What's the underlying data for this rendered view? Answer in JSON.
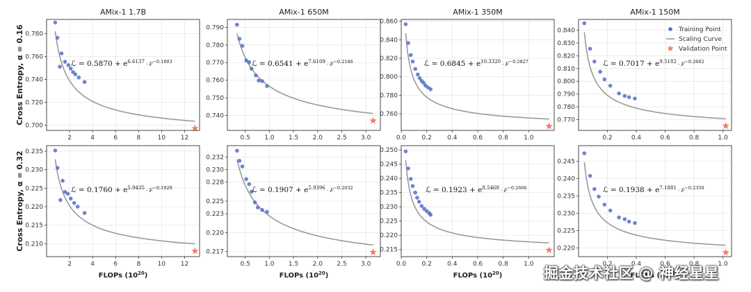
{
  "figure": {
    "row_labels": [
      "Cross Entropy, α = 0.16",
      "Cross Entropy, α = 0.32"
    ],
    "xlabel": "FLOPs (10",
    "xlabel_exp": "20",
    "xlabel_close": ")",
    "legend": {
      "training": "Training Point",
      "curve": "Scaling Curve",
      "validation": "Validation Point"
    },
    "colors": {
      "point": "#5470c6",
      "curve": "#999999",
      "star": "#f47b67"
    }
  },
  "watermark": "掘金技术社区 @ 神经星星",
  "chart_data": [
    {
      "type": "scatter",
      "title": "AMix-1 1.7B",
      "row": 0,
      "col": 0,
      "xlim": [
        0,
        13.3
      ],
      "ylim": [
        0.6955,
        0.7925
      ],
      "xticks": [
        2,
        4,
        6,
        8,
        10,
        12
      ],
      "yticks": [
        0.7,
        0.72,
        0.74,
        0.76,
        0.78
      ],
      "ytick_labels": [
        "0.700",
        "0.720",
        "0.740",
        "0.760",
        "0.780"
      ],
      "xtick_labels": [
        "2",
        "4",
        "6",
        "8",
        "10",
        "12"
      ],
      "formula": {
        "a": "0.5870",
        "b": "6.6137",
        "c": "0.1803"
      },
      "curve": {
        "a": 0.587,
        "b": 6.6137,
        "c": 0.1803
      },
      "training_points": [
        [
          0.75,
          0.7898
        ],
        [
          0.95,
          0.7765
        ],
        [
          1.3,
          0.7628
        ],
        [
          1.15,
          0.7512
        ],
        [
          1.6,
          0.7555
        ],
        [
          1.9,
          0.7525
        ],
        [
          2.1,
          0.7495
        ],
        [
          2.3,
          0.7465
        ],
        [
          2.5,
          0.7445
        ],
        [
          2.8,
          0.7418
        ],
        [
          3.3,
          0.7378
        ]
      ],
      "validation_point": [
        12.9,
        0.6972
      ],
      "curve_range": [
        0.75,
        12.9
      ]
    },
    {
      "type": "scatter",
      "title": "AMix-1 650M",
      "row": 0,
      "col": 1,
      "xlim": [
        0.13,
        3.3
      ],
      "ylim": [
        0.7315,
        0.7945
      ],
      "xticks": [
        0.5,
        1.0,
        1.5,
        2.0,
        2.5,
        3.0
      ],
      "yticks": [
        0.74,
        0.75,
        0.76,
        0.77,
        0.78,
        0.79
      ],
      "ytick_labels": [
        "0.740",
        "0.750",
        "0.760",
        "0.770",
        "0.780",
        "0.790"
      ],
      "xtick_labels": [
        "0.5",
        "1.0",
        "1.5",
        "2.0",
        "2.5",
        "3.0"
      ],
      "formula": {
        "a": "0.6541",
        "b": "7.6109",
        "c": "0.2146"
      },
      "curve": {
        "a": 0.6541,
        "b": 7.6109,
        "c": 0.2146
      },
      "training_points": [
        [
          0.33,
          0.7915
        ],
        [
          0.38,
          0.7835
        ],
        [
          0.44,
          0.7795
        ],
        [
          0.52,
          0.7712
        ],
        [
          0.58,
          0.7702
        ],
        [
          0.63,
          0.7665
        ],
        [
          0.72,
          0.7627
        ],
        [
          0.78,
          0.7598
        ],
        [
          0.85,
          0.7595
        ],
        [
          0.95,
          0.7567
        ]
      ],
      "validation_point": [
        3.15,
        0.737
      ],
      "curve_range": [
        0.33,
        3.15
      ]
    },
    {
      "type": "scatter",
      "title": "AMix-1 350M",
      "row": 0,
      "col": 2,
      "xlim": [
        0,
        1.2
      ],
      "ylim": [
        0.742,
        0.862
      ],
      "xticks": [
        0.0,
        0.2,
        0.4,
        0.6,
        0.8,
        1.0
      ],
      "yticks": [
        0.76,
        0.78,
        0.8,
        0.82,
        0.84,
        0.86
      ],
      "ytick_labels": [
        "0.760",
        "0.780",
        "0.800",
        "0.820",
        "0.840",
        "0.860"
      ],
      "xtick_labels": [
        "0.0",
        "0.2",
        "0.4",
        "0.6",
        "0.8",
        "1.0"
      ],
      "formula": {
        "a": "0.6845",
        "b": "10.3320",
        "c": "0.2827"
      },
      "curve": {
        "a": 0.6845,
        "b": 10.332,
        "c": 0.2827
      },
      "training_points": [
        [
          0.035,
          0.8568
        ],
        [
          0.055,
          0.8365
        ],
        [
          0.075,
          0.8235
        ],
        [
          0.09,
          0.8165
        ],
        [
          0.11,
          0.8085
        ],
        [
          0.13,
          0.8025
        ],
        [
          0.145,
          0.7985
        ],
        [
          0.16,
          0.7955
        ],
        [
          0.175,
          0.7935
        ],
        [
          0.19,
          0.7905
        ],
        [
          0.21,
          0.7885
        ],
        [
          0.23,
          0.7865
        ]
      ],
      "validation_point": [
        1.16,
        0.7465
      ],
      "curve_range": [
        0.035,
        1.16
      ]
    },
    {
      "type": "scatter",
      "title": "AMix-1 150M",
      "row": 0,
      "col": 3,
      "xlim": [
        0,
        1.06
      ],
      "ylim": [
        0.7615,
        0.8485
      ],
      "xticks": [
        0.2,
        0.4,
        0.6,
        0.8,
        1.0
      ],
      "yticks": [
        0.77,
        0.78,
        0.79,
        0.8,
        0.81,
        0.82,
        0.83,
        0.84
      ],
      "ytick_labels": [
        "0.770",
        "0.780",
        "0.790",
        "0.800",
        "0.810",
        "0.820",
        "0.830",
        "0.840"
      ],
      "xtick_labels": [
        "0.2",
        "0.4",
        "0.6",
        "0.8",
        "1.0"
      ],
      "formula": {
        "a": "0.7017",
        "b": "9.5182",
        "c": "0.2662"
      },
      "curve": {
        "a": 0.7017,
        "b": 9.5182,
        "c": 0.2662
      },
      "training_points": [
        [
          0.04,
          0.8455
        ],
        [
          0.08,
          0.8255
        ],
        [
          0.11,
          0.8155
        ],
        [
          0.15,
          0.8075
        ],
        [
          0.18,
          0.8015
        ],
        [
          0.22,
          0.7965
        ],
        [
          0.28,
          0.7905
        ],
        [
          0.32,
          0.7885
        ],
        [
          0.35,
          0.7875
        ],
        [
          0.39,
          0.7865
        ]
      ],
      "validation_point": [
        1.02,
        0.765
      ],
      "curve_range": [
        0.04,
        1.02
      ]
    },
    {
      "type": "scatter",
      "title": "",
      "row": 1,
      "col": 0,
      "xlim": [
        0,
        13.3
      ],
      "ylim": [
        0.2065,
        0.2365
      ],
      "xticks": [
        2,
        4,
        6,
        8,
        10,
        12
      ],
      "yticks": [
        0.21,
        0.215,
        0.22,
        0.225,
        0.23,
        0.235
      ],
      "ytick_labels": [
        "0.210",
        "0.215",
        "0.220",
        "0.225",
        "0.230",
        "0.235"
      ],
      "xtick_labels": [
        "2",
        "4",
        "6",
        "8",
        "10",
        "12"
      ],
      "formula": {
        "a": "0.1760",
        "b": "5.9435",
        "c": "0.1929"
      },
      "curve": {
        "a": 0.176,
        "b": 5.9435,
        "c": 0.1929
      },
      "training_points": [
        [
          0.75,
          0.2352
        ],
        [
          0.95,
          0.2305
        ],
        [
          1.4,
          0.227
        ],
        [
          1.2,
          0.2218
        ],
        [
          1.6,
          0.224
        ],
        [
          1.85,
          0.2235
        ],
        [
          2.1,
          0.2222
        ],
        [
          2.4,
          0.221
        ],
        [
          2.7,
          0.22
        ],
        [
          3.3,
          0.2183
        ]
      ],
      "validation_point": [
        12.9,
        0.208
      ],
      "curve_range": [
        0.75,
        12.9
      ]
    },
    {
      "type": "scatter",
      "title": "",
      "row": 1,
      "col": 1,
      "xlim": [
        0.13,
        3.3
      ],
      "ylim": [
        0.2162,
        0.2338
      ],
      "xticks": [
        0.5,
        1.0,
        1.5,
        2.0,
        2.5,
        3.0
      ],
      "yticks": [
        0.217,
        0.22,
        0.223,
        0.225,
        0.228,
        0.23,
        0.232
      ],
      "ytick_labels": [
        "0.217",
        "0.220",
        "0.223",
        "0.225",
        "0.228",
        "0.230",
        "0.232"
      ],
      "xtick_labels": [
        "0.5",
        "1.0",
        "1.5",
        "2.0",
        "2.5",
        "3.0"
      ],
      "formula": {
        "a": "0.1907",
        "b": "5.9396",
        "c": "0.2032"
      },
      "curve": {
        "a": 0.1907,
        "b": 5.9396,
        "c": 0.2032
      },
      "training_points": [
        [
          0.33,
          0.233
        ],
        [
          0.38,
          0.2314
        ],
        [
          0.44,
          0.2305
        ],
        [
          0.52,
          0.2285
        ],
        [
          0.58,
          0.2277
        ],
        [
          0.63,
          0.2265
        ],
        [
          0.7,
          0.2248
        ],
        [
          0.76,
          0.224
        ],
        [
          0.85,
          0.2236
        ],
        [
          0.95,
          0.2233
        ]
      ],
      "validation_point": [
        3.15,
        0.2169
      ],
      "curve_range": [
        0.33,
        3.15
      ]
    },
    {
      "type": "scatter",
      "title": "",
      "row": 1,
      "col": 2,
      "xlim": [
        0,
        1.2
      ],
      "ylim": [
        0.2125,
        0.2515
      ],
      "xticks": [
        0.0,
        0.2,
        0.4,
        0.6,
        0.8,
        1.0
      ],
      "yticks": [
        0.215,
        0.22,
        0.225,
        0.23,
        0.235,
        0.24,
        0.245,
        0.25
      ],
      "ytick_labels": [
        "0.215",
        "0.220",
        "0.225",
        "0.230",
        "0.235",
        "0.240",
        "0.245",
        "0.250"
      ],
      "xtick_labels": [
        "0.0",
        "0.2",
        "0.4",
        "0.6",
        "0.8",
        "1.0"
      ],
      "formula": {
        "a": "0.1923",
        "b": "8.5468",
        "c": "0.2666"
      },
      "curve": {
        "a": 0.1923,
        "b": 8.5468,
        "c": 0.2666
      },
      "training_points": [
        [
          0.035,
          0.2495
        ],
        [
          0.055,
          0.2435
        ],
        [
          0.075,
          0.2398
        ],
        [
          0.09,
          0.2373
        ],
        [
          0.11,
          0.235
        ],
        [
          0.125,
          0.2332
        ],
        [
          0.14,
          0.2318
        ],
        [
          0.16,
          0.2303
        ],
        [
          0.18,
          0.2293
        ],
        [
          0.2,
          0.2285
        ],
        [
          0.22,
          0.2278
        ],
        [
          0.23,
          0.2272
        ]
      ],
      "validation_point": [
        1.16,
        0.2148
      ],
      "curve_range": [
        0.035,
        1.16
      ]
    },
    {
      "type": "scatter",
      "title": "",
      "row": 1,
      "col": 3,
      "xlim": [
        0,
        1.06
      ],
      "ylim": [
        0.2175,
        0.2495
      ],
      "xticks": [
        0.2,
        0.4,
        0.6,
        0.8,
        1.0
      ],
      "yticks": [
        0.22,
        0.225,
        0.23,
        0.235,
        0.24,
        0.245
      ],
      "ytick_labels": [
        "0.220",
        "0.225",
        "0.230",
        "0.235",
        "0.240",
        "0.245"
      ],
      "xtick_labels": [
        "0.2",
        "0.4",
        "0.6",
        "0.8",
        "1.0"
      ],
      "formula": {
        "a": "0.1938",
        "b": "7.1881",
        "c": "0.2350"
      },
      "curve": {
        "a": 0.1938,
        "b": 7.1881,
        "c": 0.235
      },
      "training_points": [
        [
          0.04,
          0.2473
        ],
        [
          0.08,
          0.2408
        ],
        [
          0.11,
          0.237
        ],
        [
          0.14,
          0.2348
        ],
        [
          0.18,
          0.2325
        ],
        [
          0.22,
          0.2308
        ],
        [
          0.28,
          0.2288
        ],
        [
          0.32,
          0.2283
        ],
        [
          0.35,
          0.2276
        ],
        [
          0.39,
          0.2272
        ]
      ],
      "validation_point": [
        1.02,
        0.2187
      ],
      "curve_range": [
        0.04,
        1.02
      ]
    }
  ]
}
